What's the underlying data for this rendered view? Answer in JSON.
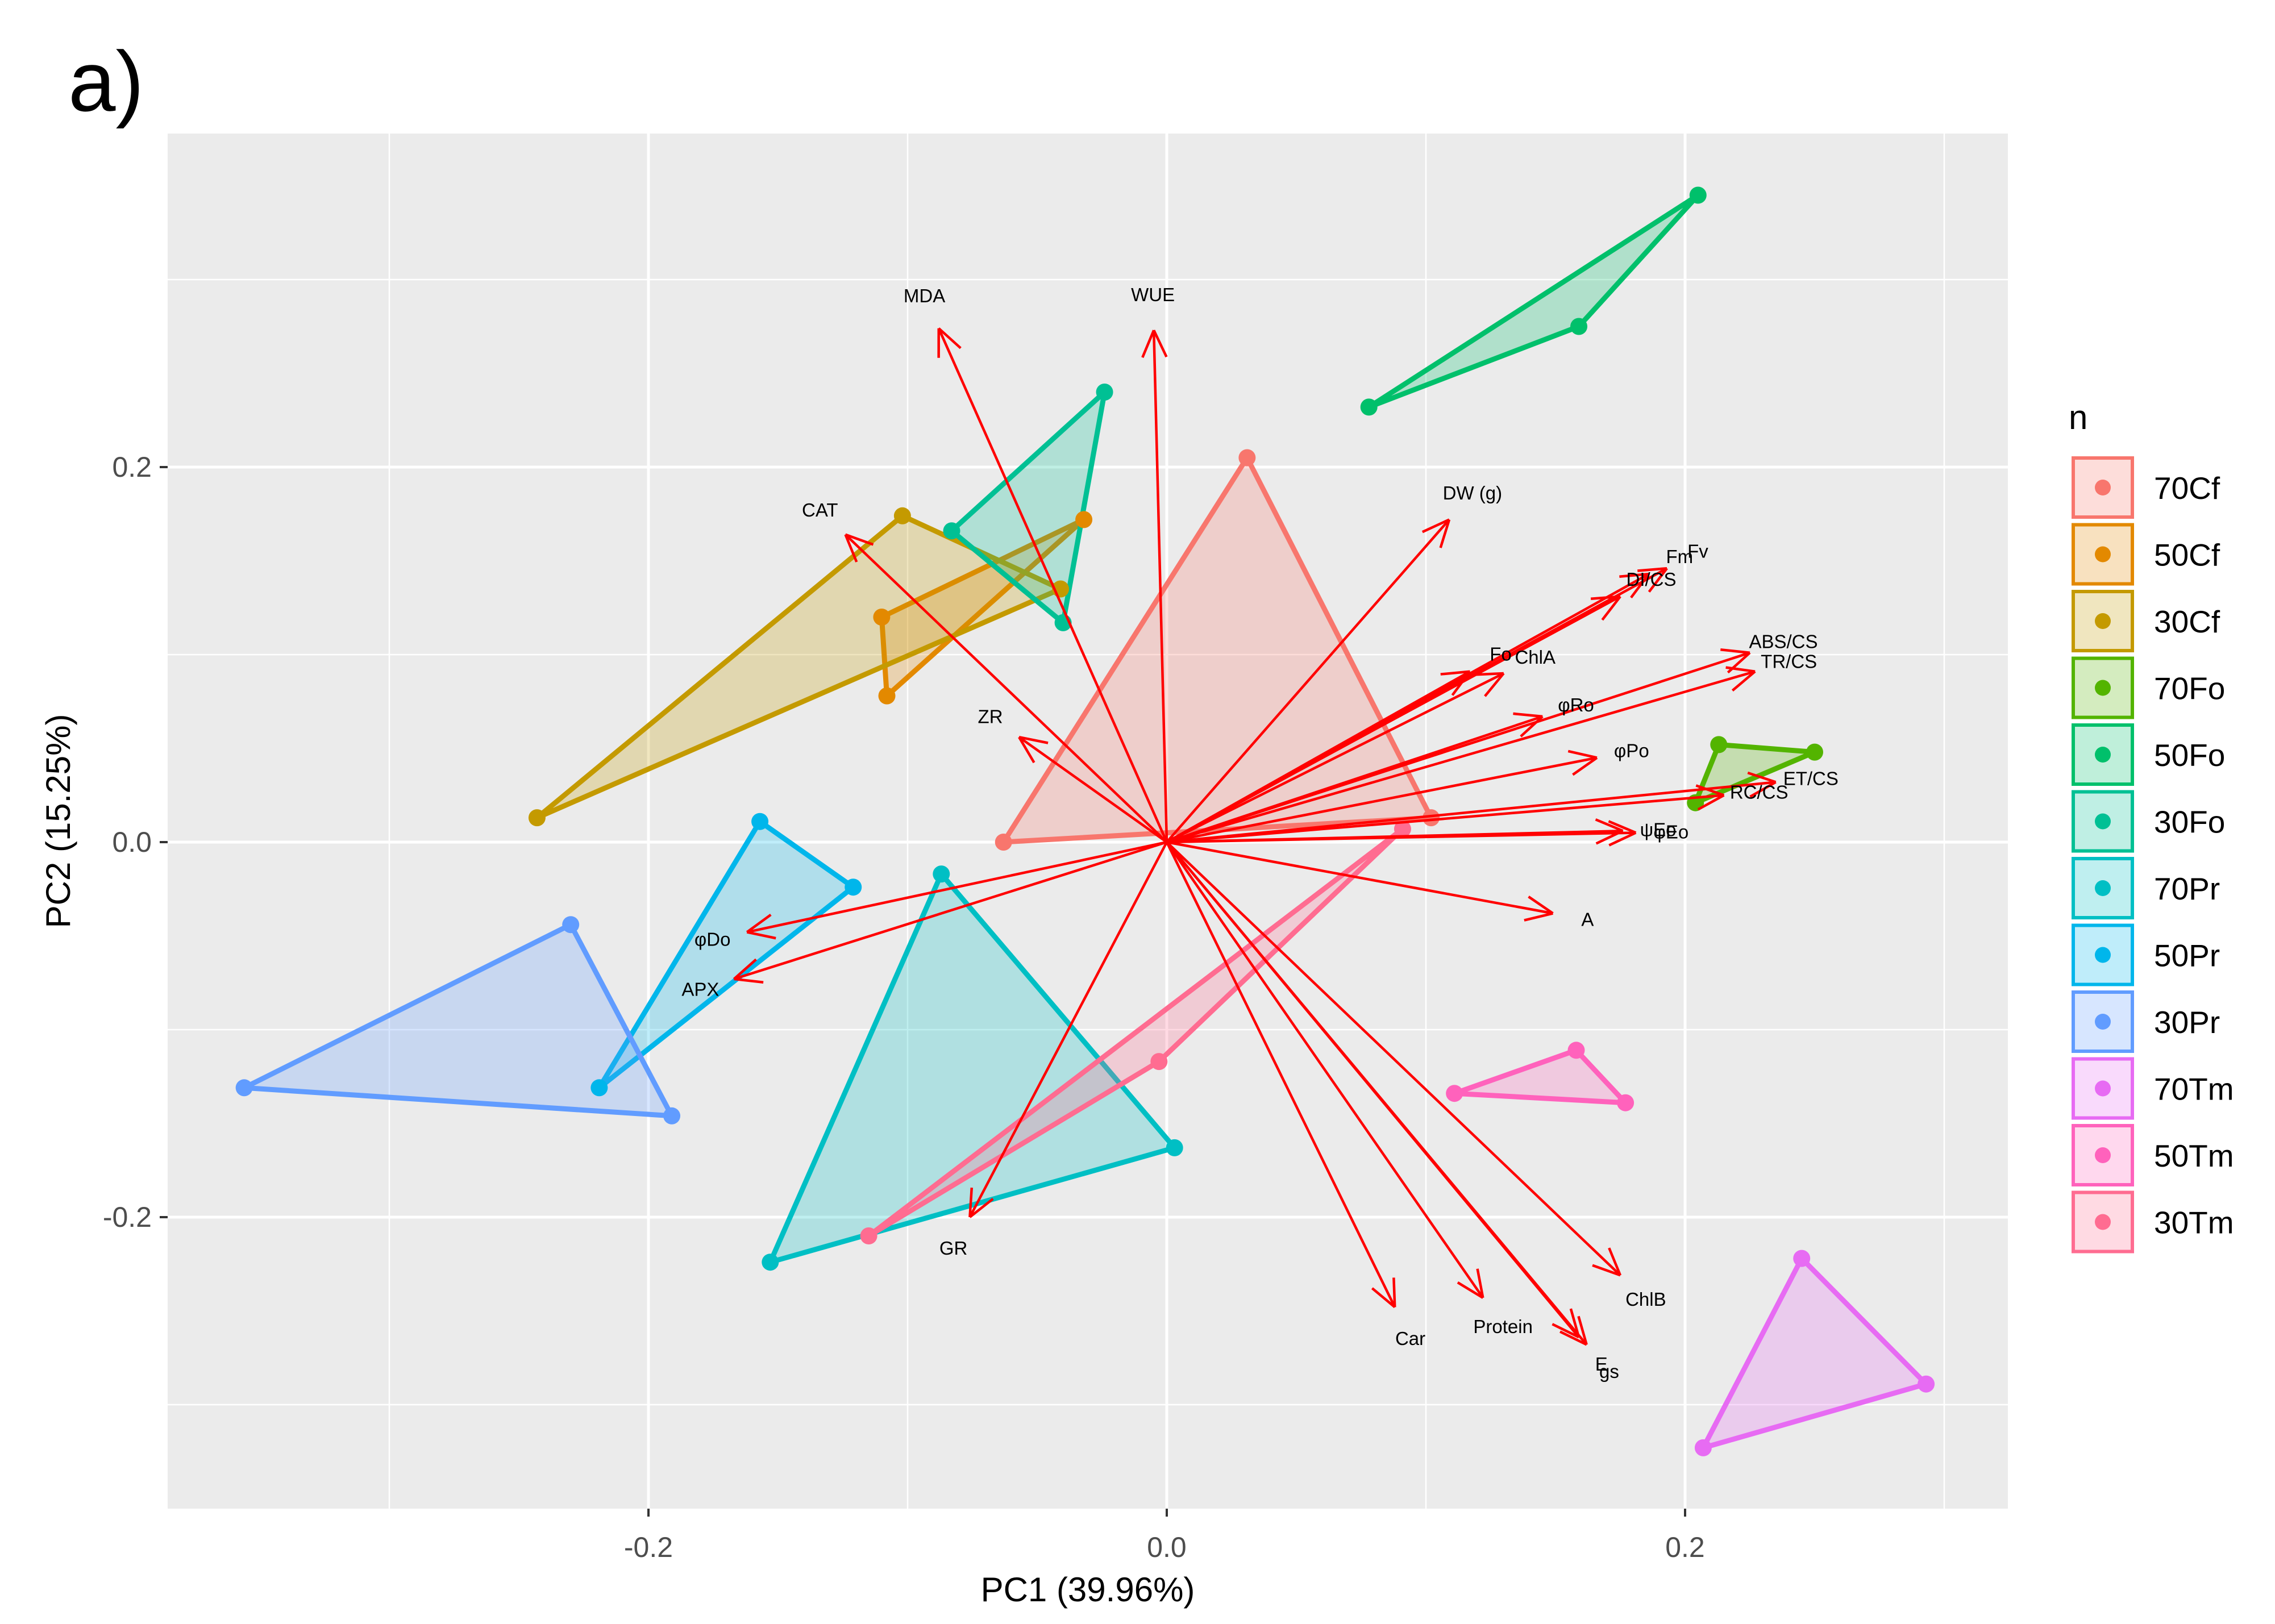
{
  "panel_label": "a)",
  "chart_data": {
    "type": "scatter",
    "subtype": "pca-biplot",
    "title": "",
    "xlabel": "PC1 (39.96%)",
    "ylabel": "PC2 (15.25%)",
    "xlim": [
      -0.39,
      0.326
    ],
    "ylim": [
      -0.355,
      0.378
    ],
    "xticks": [
      -0.2,
      0.0,
      0.2
    ],
    "xtick_labels": [
      "-0.2",
      "0.0",
      "0.2"
    ],
    "yticks": [
      -0.2,
      0.0,
      0.2
    ],
    "ytick_labels": [
      "-0.2",
      "0.0",
      "0.2"
    ],
    "grid": true,
    "legend_title": "n",
    "legend_position": "right",
    "groups": [
      {
        "name": "70Cf",
        "color": "#F8766D",
        "points": [
          [
            0.031,
            0.205
          ],
          [
            -0.063,
            0.0
          ],
          [
            0.102,
            0.013
          ]
        ]
      },
      {
        "name": "50Cf",
        "color": "#E38900",
        "points": [
          [
            -0.11,
            0.12
          ],
          [
            -0.032,
            0.172
          ],
          [
            -0.108,
            0.078
          ]
        ]
      },
      {
        "name": "30Cf",
        "color": "#C49A00",
        "points": [
          [
            -0.243,
            0.013
          ],
          [
            -0.102,
            0.174
          ],
          [
            -0.041,
            0.135
          ]
        ]
      },
      {
        "name": "70Fo",
        "color": "#53B400",
        "points": [
          [
            0.213,
            0.052
          ],
          [
            0.25,
            0.048
          ],
          [
            0.204,
            0.021
          ]
        ]
      },
      {
        "name": "50Fo",
        "color": "#00C06B",
        "points": [
          [
            0.078,
            0.232
          ],
          [
            0.159,
            0.275
          ],
          [
            0.205,
            0.345
          ]
        ]
      },
      {
        "name": "30Fo",
        "color": "#00C094",
        "points": [
          [
            -0.083,
            0.166
          ],
          [
            -0.024,
            0.24
          ],
          [
            -0.04,
            0.117
          ]
        ]
      },
      {
        "name": "70Pr",
        "color": "#00BFC4",
        "points": [
          [
            -0.153,
            -0.224
          ],
          [
            -0.087,
            -0.017
          ],
          [
            0.003,
            -0.163
          ]
        ]
      },
      {
        "name": "50Pr",
        "color": "#00B6EB",
        "points": [
          [
            -0.157,
            0.011
          ],
          [
            -0.121,
            -0.024
          ],
          [
            -0.219,
            -0.131
          ]
        ]
      },
      {
        "name": "30Pr",
        "color": "#619CFF",
        "points": [
          [
            -0.356,
            -0.131
          ],
          [
            -0.23,
            -0.044
          ],
          [
            -0.191,
            -0.146
          ]
        ]
      },
      {
        "name": "70Tm",
        "color": "#E76BF3",
        "points": [
          [
            0.245,
            -0.222
          ],
          [
            0.293,
            -0.289
          ],
          [
            0.207,
            -0.323
          ]
        ]
      },
      {
        "name": "50Tm",
        "color": "#FF62BC",
        "points": [
          [
            0.111,
            -0.134
          ],
          [
            0.158,
            -0.111
          ],
          [
            0.177,
            -0.139
          ]
        ]
      },
      {
        "name": "30Tm",
        "color": "#FF6C91",
        "points": [
          [
            -0.115,
            -0.21
          ],
          [
            -0.003,
            -0.117
          ],
          [
            0.091,
            0.007
          ]
        ]
      }
    ],
    "loadings": [
      {
        "name": "MDA",
        "x": -0.088,
        "y": 0.274
      },
      {
        "name": "WUE",
        "x": -0.005,
        "y": 0.273
      },
      {
        "name": "DW (g)",
        "x": 0.109,
        "y": 0.172
      },
      {
        "name": "CAT",
        "x": -0.124,
        "y": 0.164
      },
      {
        "name": "Fv",
        "x": 0.193,
        "y": 0.146
      },
      {
        "name": "Fm",
        "x": 0.186,
        "y": 0.143
      },
      {
        "name": "DI/CS",
        "x": 0.175,
        "y": 0.131
      },
      {
        "name": "ABS/CS",
        "x": 0.225,
        "y": 0.101
      },
      {
        "name": "TR/CS",
        "x": 0.227,
        "y": 0.091
      },
      {
        "name": "Fo",
        "x": 0.117,
        "y": 0.091
      },
      {
        "name": "ChlA",
        "x": 0.13,
        "y": 0.09
      },
      {
        "name": "φRo",
        "x": 0.145,
        "y": 0.067
      },
      {
        "name": "φPo",
        "x": 0.166,
        "y": 0.045
      },
      {
        "name": "ET/CS",
        "x": 0.235,
        "y": 0.032
      },
      {
        "name": "RC/CS",
        "x": 0.215,
        "y": 0.025
      },
      {
        "name": "ψEo",
        "x": 0.176,
        "y": 0.006
      },
      {
        "name": "φEo",
        "x": 0.181,
        "y": 0.005
      },
      {
        "name": "A",
        "x": 0.149,
        "y": -0.038
      },
      {
        "name": "ZR",
        "x": -0.057,
        "y": 0.056
      },
      {
        "name": "φDo",
        "x": -0.162,
        "y": -0.048
      },
      {
        "name": "APX",
        "x": -0.167,
        "y": -0.073
      },
      {
        "name": "GR",
        "x": -0.076,
        "y": -0.2
      },
      {
        "name": "ChlB",
        "x": 0.175,
        "y": -0.231
      },
      {
        "name": "Car",
        "x": 0.088,
        "y": -0.248
      },
      {
        "name": "Protein",
        "x": 0.122,
        "y": -0.243
      },
      {
        "name": "gs",
        "x": 0.162,
        "y": -0.268
      },
      {
        "name": "E",
        "x": 0.159,
        "y": -0.264
      }
    ]
  }
}
